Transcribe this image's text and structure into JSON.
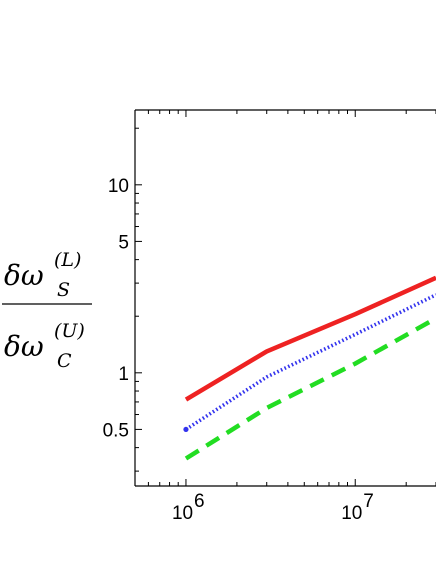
{
  "chart_data": {
    "type": "line",
    "x_scale": "log",
    "y_scale": "log",
    "xlim": [
      500000,
      30000000
    ],
    "ylim": [
      0.25,
      25
    ],
    "x_ticks": [
      {
        "value": 1000000,
        "base": "10",
        "exp": "6"
      },
      {
        "value": 10000000,
        "base": "10",
        "exp": "7"
      }
    ],
    "y_ticks": [
      {
        "value": 0.5,
        "label": "0.5"
      },
      {
        "value": 1,
        "label": "1"
      },
      {
        "value": 5,
        "label": "5"
      },
      {
        "value": 10,
        "label": "10"
      }
    ],
    "ylabel": {
      "numerator": {
        "base": "δω",
        "sup": "(L)",
        "sub": "S"
      },
      "denominator": {
        "base": "δω",
        "sup": "(U)",
        "sub": "C"
      }
    },
    "grid": false,
    "series": [
      {
        "color": "#ee2222",
        "style": "solid",
        "points": [
          [
            1000000,
            0.72
          ],
          [
            3000000,
            1.3
          ],
          [
            10000000,
            2.05
          ],
          [
            30000000,
            3.2
          ]
        ]
      },
      {
        "color": "#3333ee",
        "style": "dotted",
        "points": [
          [
            1000000,
            0.5
          ],
          [
            3000000,
            0.95
          ],
          [
            10000000,
            1.6
          ],
          [
            30000000,
            2.6
          ]
        ]
      },
      {
        "color": "#22dd22",
        "style": "dashed",
        "points": [
          [
            1000000,
            0.35
          ],
          [
            3000000,
            0.65
          ],
          [
            10000000,
            1.12
          ],
          [
            30000000,
            1.95
          ]
        ]
      }
    ]
  }
}
